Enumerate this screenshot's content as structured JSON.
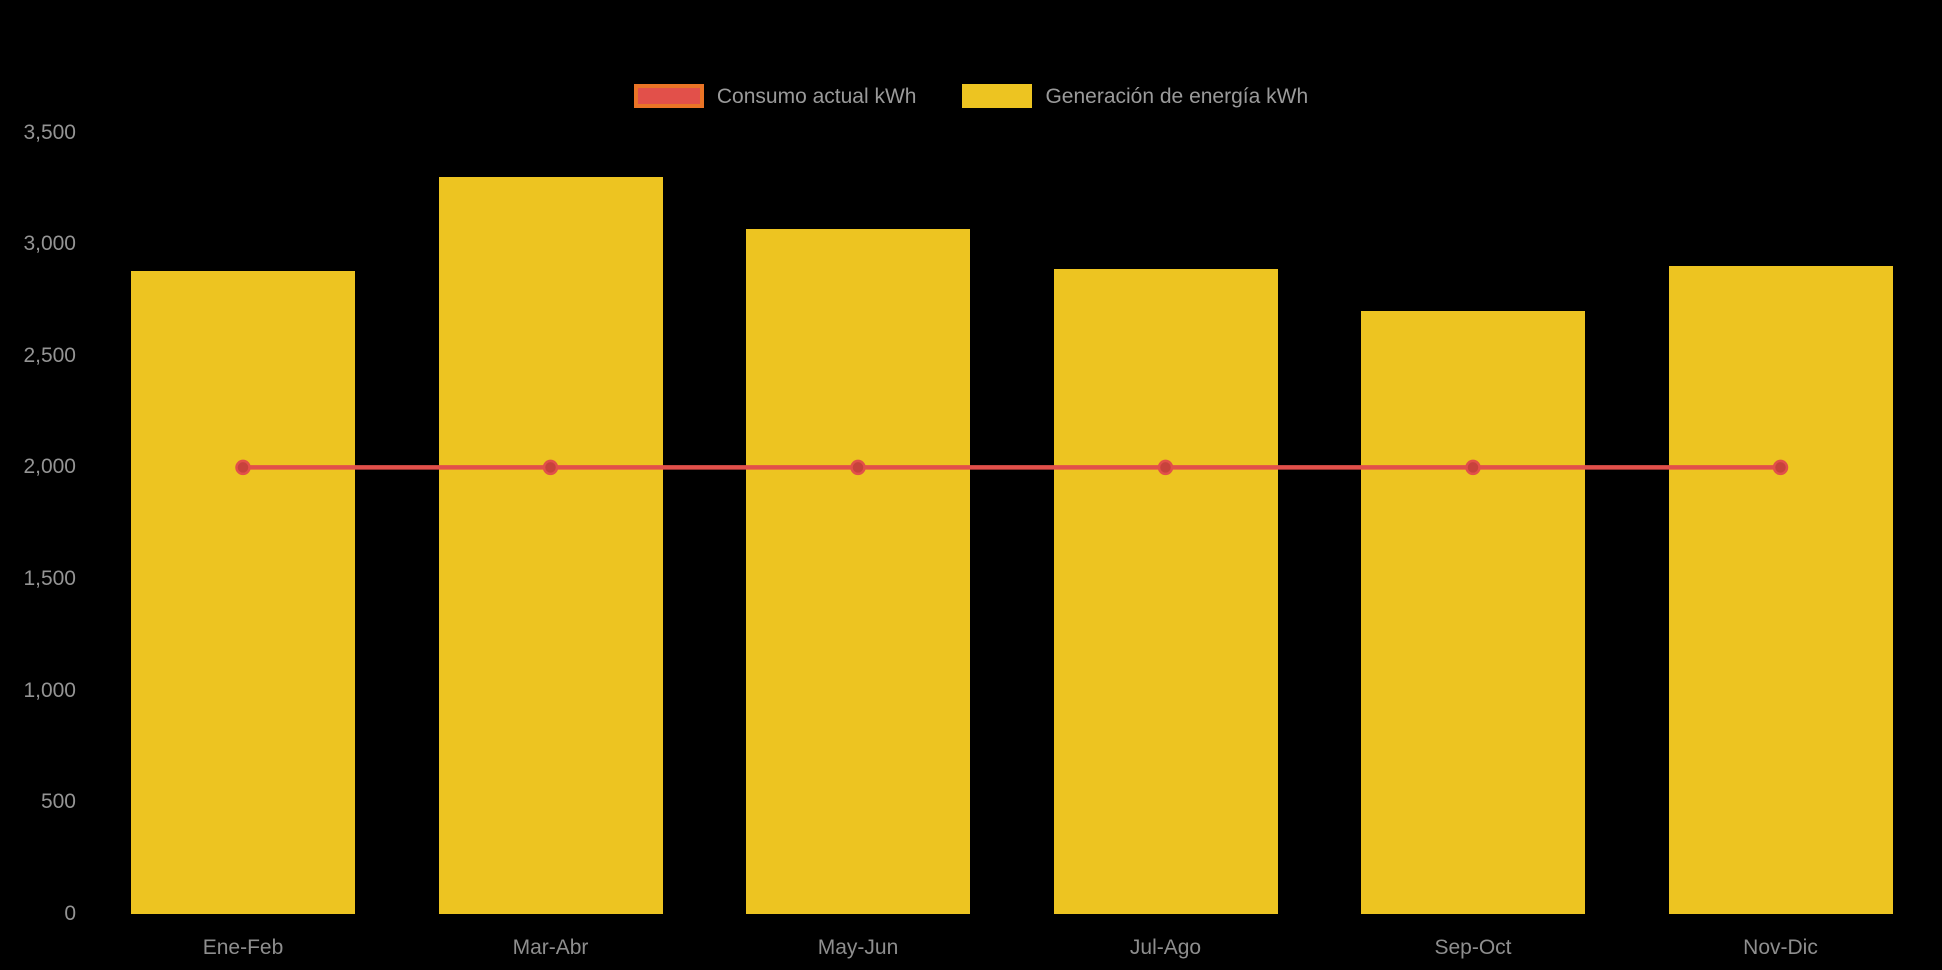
{
  "chart_data": {
    "type": "bar",
    "title": "",
    "xlabel": "",
    "ylabel": "",
    "categories": [
      "Ene-Feb",
      "Mar-Abr",
      "May-Jun",
      "Jul-Ago",
      "Sep-Oct",
      "Nov-Dic"
    ],
    "series": [
      {
        "name": "Consumo actual kWh",
        "type": "line",
        "color": "#E2504A",
        "swatch_border_color": "#EA7426",
        "marker_fill": "#C7423C",
        "values": [
          2000,
          2000,
          2000,
          2000,
          2000,
          2000
        ]
      },
      {
        "name": "Generación de energía kWh",
        "type": "bar",
        "color": "#EDC421",
        "swatch_border_color": "#EDC421",
        "values": [
          2880,
          3300,
          3070,
          2890,
          2700,
          2900
        ]
      }
    ],
    "ylim": [
      0,
      3500
    ],
    "y_ticks": [
      {
        "value": 0,
        "label": "0"
      },
      {
        "value": 500,
        "label": "500"
      },
      {
        "value": 1000,
        "label": "1,000"
      },
      {
        "value": 1500,
        "label": "1,500"
      },
      {
        "value": 2000,
        "label": "2,000"
      },
      {
        "value": 2500,
        "label": "2,500"
      },
      {
        "value": 3000,
        "label": "3,000"
      },
      {
        "value": 3500,
        "label": "3,500"
      }
    ],
    "grid": false,
    "legend_position": "top-center",
    "background_color": "#000000",
    "text_color": "#949494"
  }
}
